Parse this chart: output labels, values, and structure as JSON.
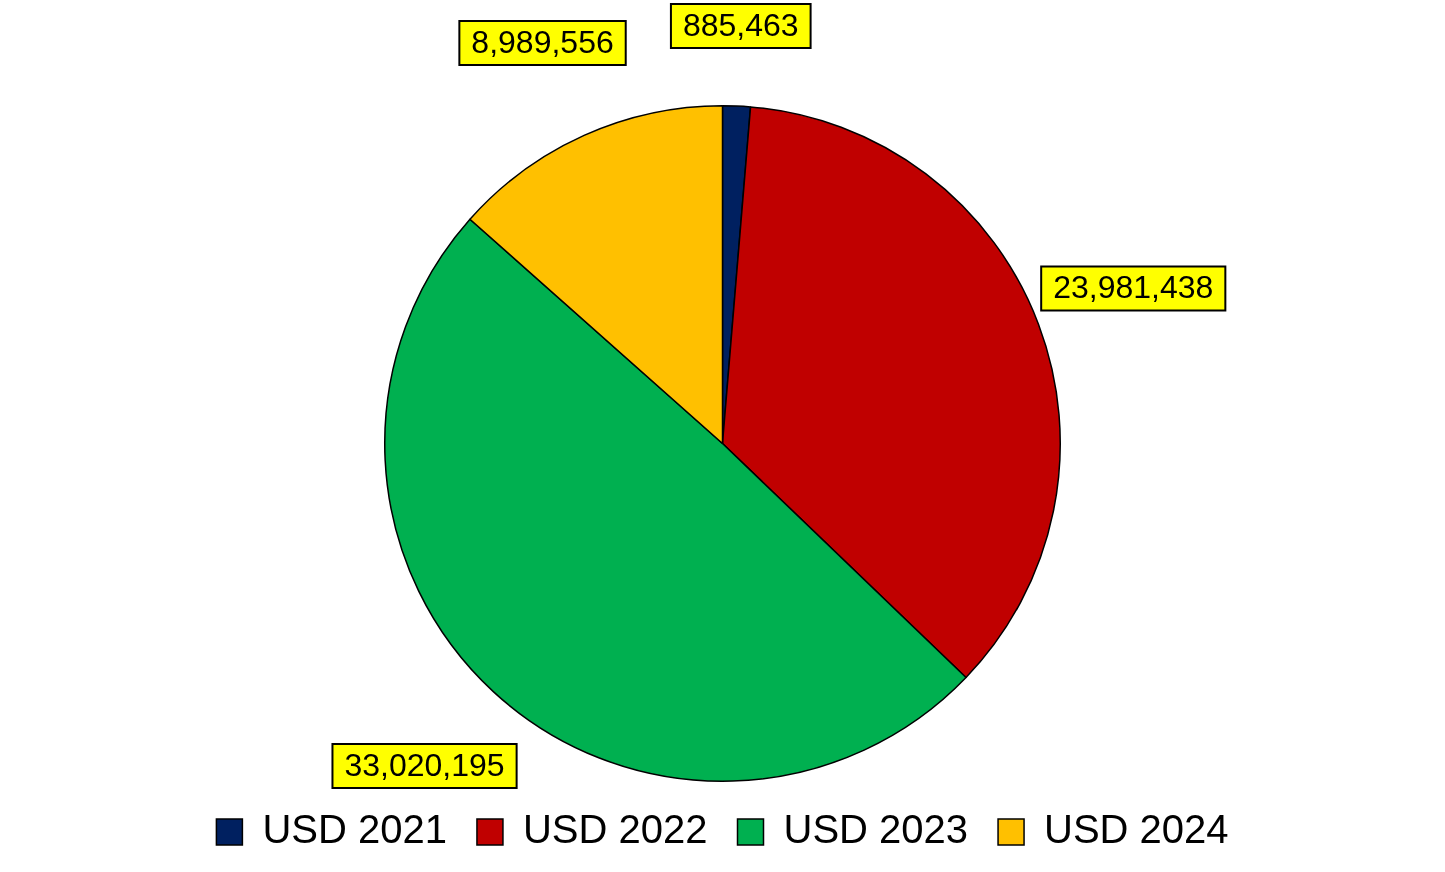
{
  "chart_data": {
    "type": "pie",
    "categories": [
      "USD 2021",
      "USD 2022",
      "USD 2023",
      "USD 2024"
    ],
    "values": [
      885463,
      23981438,
      33020195,
      8989556
    ],
    "colors": [
      "#002060",
      "#c00000",
      "#00b050",
      "#ffc000"
    ],
    "value_labels": [
      "885,463",
      "23,981,438",
      "33,020,195",
      "8,989,556"
    ],
    "legend": "bottom"
  }
}
